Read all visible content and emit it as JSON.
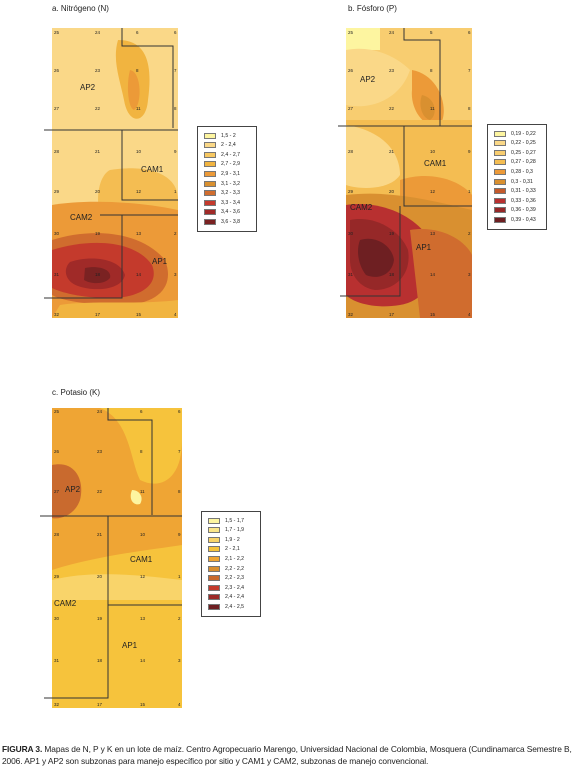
{
  "panels": {
    "n": {
      "title": "a. Nitrógeno (N)"
    },
    "p": {
      "title": "b. Fósforo (P)"
    },
    "k": {
      "title": "c.  Potasio (K)"
    }
  },
  "zone_labels": [
    "AP2",
    "CAM1",
    "CAM2",
    "AP1"
  ],
  "legends": {
    "n": [
      {
        "label": "1,5 - 2",
        "color": "#fdf5a0"
      },
      {
        "label": "2 - 2,4",
        "color": "#fad888"
      },
      {
        "label": "2,4 - 2,7",
        "color": "#f7c862"
      },
      {
        "label": "2,7 - 2,9",
        "color": "#f1b440"
      },
      {
        "label": "2,9 - 3,1",
        "color": "#ec9a38"
      },
      {
        "label": "3,1 - 3,2",
        "color": "#d99030"
      },
      {
        "label": "3,2 - 3,3",
        "color": "#d06c2e"
      },
      {
        "label": "3,3 - 3,4",
        "color": "#c43a2c"
      },
      {
        "label": "3,4 - 3,6",
        "color": "#a02a28"
      },
      {
        "label": "3,6 - 3,8",
        "color": "#7a2222"
      }
    ],
    "p": [
      {
        "label": "0,19 - 0,22",
        "color": "#fdf5a0"
      },
      {
        "label": "0,22 - 0,25",
        "color": "#fad888"
      },
      {
        "label": "0,25 - 0,27",
        "color": "#f8cd70"
      },
      {
        "label": "0,27 - 0,28",
        "color": "#f4bd52"
      },
      {
        "label": "0,28 - 0,3",
        "color": "#ec9a38"
      },
      {
        "label": "0,3 - 0,31",
        "color": "#d99030"
      },
      {
        "label": "0,31 - 0,33",
        "color": "#c45a2c"
      },
      {
        "label": "0,33 - 0,36",
        "color": "#b83030"
      },
      {
        "label": "0,36 - 0,39",
        "color": "#962828"
      },
      {
        "label": "0,39 - 0,43",
        "color": "#6e1f22"
      }
    ],
    "k": [
      {
        "label": "1,5 - 1,7",
        "color": "#fdf5a0"
      },
      {
        "label": "1,7 - 1,9",
        "color": "#fbe68a"
      },
      {
        "label": "1,9 - 2",
        "color": "#f9d46a"
      },
      {
        "label": "2 - 2,1",
        "color": "#f6c33c"
      },
      {
        "label": "2,1 - 2,2",
        "color": "#efa534"
      },
      {
        "label": "2,2 - 2,2",
        "color": "#d99030"
      },
      {
        "label": "2,2 - 2,3",
        "color": "#c96a2e"
      },
      {
        "label": "2,3 - 2,4",
        "color": "#c43a2c"
      },
      {
        "label": "2,4 - 2,4",
        "color": "#9c2a28"
      },
      {
        "label": "2,4 - 2,5",
        "color": "#6e1f22"
      }
    ]
  },
  "point_ids": [
    "25",
    "24",
    "6",
    "6",
    "23",
    "7",
    "22",
    "11",
    "8",
    "26",
    "21",
    "10",
    "9",
    "28",
    "20",
    "12",
    "1",
    "29",
    "19",
    "13",
    "30",
    "18",
    "14",
    "2",
    "31",
    "17",
    "15",
    "3",
    "32",
    "16",
    "5",
    "4"
  ],
  "caption": {
    "lead": "FIGURA 3.",
    "text": " Mapas de N,  P y  K en un lote de maíz. Centro Agropecuario Marengo, Universidad Nacional de Colombia, Mosquera (Cundinamarca Semestre B, 2006. AP1 y AP2 son subzonas para manejo específico por sitio y CAM1 y CAM2, subzonas de manejo convencional."
  }
}
